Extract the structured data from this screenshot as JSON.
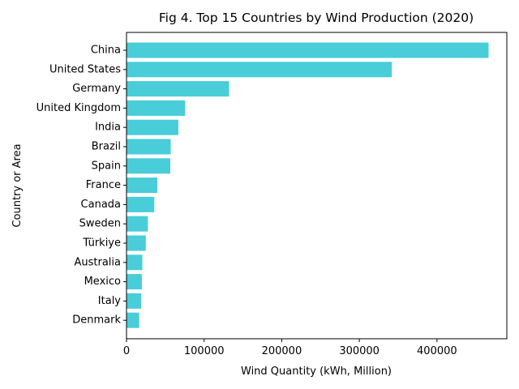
{
  "chart_data": {
    "type": "bar",
    "orientation": "horizontal",
    "title": "Fig 4. Top 15 Countries by Wind Production (2020)",
    "xlabel": "Wind Quantity (kWh, Million)",
    "ylabel": "Country or Area",
    "xlim": [
      0,
      490000
    ],
    "x_ticks": [
      0,
      100000,
      200000,
      300000,
      400000
    ],
    "x_tick_labels": [
      "0",
      "100000",
      "200000",
      "300000",
      "400000"
    ],
    "categories": [
      "China",
      "United States",
      "Germany",
      "United Kingdom",
      "India",
      "Brazil",
      "Spain",
      "France",
      "Canada",
      "Sweden",
      "Türkiye",
      "Australia",
      "Mexico",
      "Italy",
      "Denmark"
    ],
    "values": [
      466500,
      341800,
      132100,
      75600,
      66800,
      57000,
      56400,
      39700,
      35800,
      27500,
      24800,
      20400,
      19800,
      18800,
      16300
    ],
    "bar_color": "#48cdd9",
    "grid": false,
    "legend": "none"
  }
}
